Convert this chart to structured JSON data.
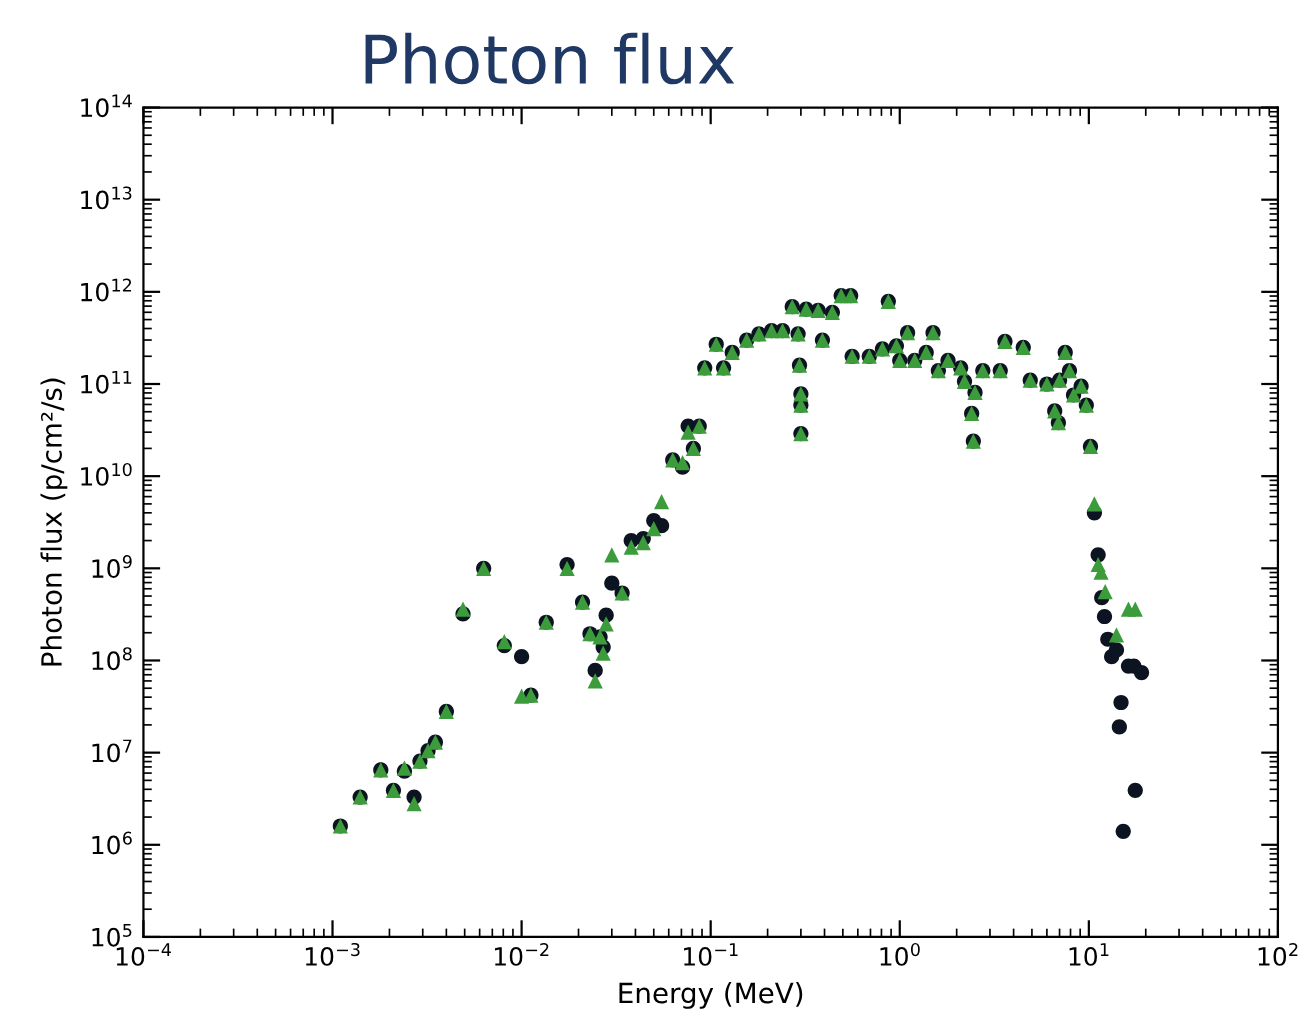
{
  "chart_data": {
    "type": "scatter",
    "title": "Photon flux",
    "xlabel": "Energy (MeV)",
    "ylabel": "Photon flux (p/cm²/s)",
    "log": "xy",
    "grid": false,
    "xlim": [
      0.0001,
      100
    ],
    "ylim": [
      100000,
      100000000000000
    ],
    "xticks": [
      {
        "value": 0.0001,
        "label": "10$^{−4}$"
      },
      {
        "value": 0.001,
        "label": "10$^{−3}$"
      },
      {
        "value": 0.01,
        "label": "10$^{−2}$"
      },
      {
        "value": 0.1,
        "label": "10$^{−1}$"
      },
      {
        "value": 1,
        "label": "10$^{0}$"
      },
      {
        "value": 10,
        "label": "10$^{1}$"
      },
      {
        "value": 100,
        "label": "10$^{2}$"
      }
    ],
    "yticks": [
      {
        "value": 100000,
        "label": "10$^{5}$"
      },
      {
        "value": 1000000,
        "label": "10$^{6}$"
      },
      {
        "value": 10000000,
        "label": "10$^{7}$"
      },
      {
        "value": 100000000,
        "label": "10$^{8}$"
      },
      {
        "value": 1000000000,
        "label": "10$^{9}$"
      },
      {
        "value": 10000000000,
        "label": "10$^{10}$"
      },
      {
        "value": 100000000000,
        "label": "10$^{11}$"
      },
      {
        "value": 1000000000000,
        "label": "10$^{12}$"
      },
      {
        "value": 10000000000000,
        "label": "10$^{13}$"
      },
      {
        "value": 100000000000000,
        "label": "10$^{14}$"
      }
    ],
    "series": [
      {
        "color": "#0d1421",
        "marker": "circle",
        "x": [
          0.0011,
          0.0014,
          0.0018,
          0.0021,
          0.0024,
          0.0027,
          0.0029,
          0.0032,
          0.0035,
          0.004,
          0.0049,
          0.0063,
          0.0081,
          0.01,
          0.0112,
          0.0135,
          0.0174,
          0.021,
          0.023,
          0.0245,
          0.026,
          0.027,
          0.028,
          0.03,
          0.034,
          0.038,
          0.044,
          0.05,
          0.055,
          0.063,
          0.071,
          0.076,
          0.081,
          0.087,
          0.093,
          0.107,
          0.117,
          0.13,
          0.155,
          0.18,
          0.21,
          0.24,
          0.27,
          0.29,
          0.295,
          0.3,
          0.3,
          0.3,
          0.32,
          0.37,
          0.39,
          0.44,
          0.49,
          0.55,
          0.56,
          0.69,
          0.81,
          0.87,
          0.96,
          1.0,
          1.1,
          1.2,
          1.38,
          1.5,
          1.6,
          1.8,
          2.1,
          2.2,
          2.4,
          2.45,
          2.5,
          2.75,
          3.4,
          3.6,
          4.5,
          4.9,
          6.0,
          6.6,
          6.9,
          7.0,
          7.5,
          7.9,
          8.3,
          9.1,
          9.7,
          10.2,
          10.7,
          11.2,
          11.7,
          12.1,
          12.6,
          13.2,
          14.0,
          14.5,
          14.8,
          15.2,
          16.2,
          17.3,
          17.6,
          19.0
        ],
        "values": [
          1600000.0,
          3300000.0,
          6500000.0,
          3900000.0,
          6300000.0,
          3300000.0,
          8100000.0,
          10500000.0,
          13000000.0,
          28000000.0,
          320000000.0,
          1000000000.0,
          145000000.0,
          110000000.0,
          42000000.0,
          260000000.0,
          1100000000.0,
          430000000.0,
          195000000.0,
          78000000.0,
          180000000.0,
          140000000.0,
          310000000.0,
          690000000.0,
          540000000.0,
          2000000000.0,
          2100000000.0,
          3300000000.0,
          2900000000.0,
          15000000000.0,
          12500000000.0,
          35000000000.0,
          20000000000.0,
          35000000000.0,
          150000000000.0,
          270000000000.0,
          150000000000.0,
          220000000000.0,
          300000000000.0,
          350000000000.0,
          380000000000.0,
          380000000000.0,
          690000000000.0,
          350000000000.0,
          160000000000.0,
          78000000000.0,
          59000000000.0,
          29000000000.0,
          650000000000.0,
          630000000000.0,
          300000000000.0,
          600000000000.0,
          910000000000.0,
          910000000000.0,
          200000000000.0,
          200000000000.0,
          240000000000.0,
          790000000000.0,
          260000000000.0,
          180000000000.0,
          360000000000.0,
          180000000000.0,
          220000000000.0,
          360000000000.0,
          140000000000.0,
          180000000000.0,
          150000000000.0,
          107000000000.0,
          48000000000.0,
          24000000000.0,
          81000000000.0,
          140000000000.0,
          140000000000.0,
          290000000000.0,
          250000000000.0,
          110000000000.0,
          100000000000.0,
          51000000000.0,
          38000000000.0,
          110000000000.0,
          220000000000.0,
          140000000000.0,
          76000000000.0,
          95000000000.0,
          59000000000.0,
          21000000000.0,
          4000000000.0,
          1400000000.0,
          480000000.0,
          300000000.0,
          170000000.0,
          110000000.0,
          130000000.0,
          19000000.0,
          35000000.0,
          1400000.0,
          87000000.0,
          87000000.0,
          3900000.0,
          74000000.0
        ]
      },
      {
        "color": "#3c9c3c",
        "marker": "triangle",
        "x": [
          0.0011,
          0.0014,
          0.0018,
          0.0021,
          0.0024,
          0.0027,
          0.0029,
          0.0032,
          0.0035,
          0.004,
          0.0049,
          0.0063,
          0.0081,
          0.01,
          0.0112,
          0.0135,
          0.0174,
          0.021,
          0.023,
          0.0245,
          0.026,
          0.027,
          0.028,
          0.03,
          0.034,
          0.038,
          0.044,
          0.05,
          0.055,
          0.063,
          0.071,
          0.076,
          0.081,
          0.087,
          0.093,
          0.107,
          0.117,
          0.13,
          0.155,
          0.18,
          0.21,
          0.24,
          0.27,
          0.29,
          0.295,
          0.3,
          0.3,
          0.3,
          0.32,
          0.37,
          0.39,
          0.44,
          0.49,
          0.55,
          0.56,
          0.69,
          0.81,
          0.87,
          0.96,
          1.0,
          1.1,
          1.2,
          1.38,
          1.5,
          1.6,
          1.8,
          2.1,
          2.2,
          2.4,
          2.45,
          2.5,
          2.75,
          3.4,
          3.6,
          4.5,
          4.9,
          6.0,
          6.6,
          6.9,
          7.0,
          7.5,
          7.9,
          8.3,
          9.1,
          9.7,
          10.2,
          10.7,
          11.2,
          11.6,
          12.2,
          14.0,
          16.2,
          17.6
        ],
        "values": [
          1600000.0,
          3300000.0,
          6500000.0,
          3900000.0,
          6800000.0,
          2800000.0,
          8100000.0,
          10500000.0,
          13000000.0,
          28000000.0,
          360000000.0,
          1000000000.0,
          160000000.0,
          41000000.0,
          42000000.0,
          260000000.0,
          1000000000.0,
          430000000.0,
          195000000.0,
          60000000.0,
          180000000.0,
          120000000.0,
          250000000.0,
          1400000000.0,
          540000000.0,
          1700000000.0,
          1900000000.0,
          2700000000.0,
          5300000000.0,
          15000000000.0,
          14000000000.0,
          30000000000.0,
          20000000000.0,
          35000000000.0,
          150000000000.0,
          270000000000.0,
          150000000000.0,
          220000000000.0,
          300000000000.0,
          350000000000.0,
          380000000000.0,
          380000000000.0,
          690000000000.0,
          350000000000.0,
          160000000000.0,
          78000000000.0,
          59000000000.0,
          29000000000.0,
          650000000000.0,
          630000000000.0,
          300000000000.0,
          600000000000.0,
          910000000000.0,
          910000000000.0,
          200000000000.0,
          200000000000.0,
          240000000000.0,
          790000000000.0,
          260000000000.0,
          180000000000.0,
          360000000000.0,
          180000000000.0,
          220000000000.0,
          360000000000.0,
          140000000000.0,
          180000000000.0,
          150000000000.0,
          107000000000.0,
          48000000000.0,
          24000000000.0,
          81000000000.0,
          140000000000.0,
          140000000000.0,
          290000000000.0,
          250000000000.0,
          110000000000.0,
          100000000000.0,
          51000000000.0,
          38000000000.0,
          110000000000.0,
          220000000000.0,
          140000000000.0,
          76000000000.0,
          95000000000.0,
          59000000000.0,
          21000000000.0,
          5000000000.0,
          1100000000.0,
          910000000.0,
          560000000.0,
          190000000.0,
          360000000.0,
          360000000.0
        ]
      }
    ]
  }
}
